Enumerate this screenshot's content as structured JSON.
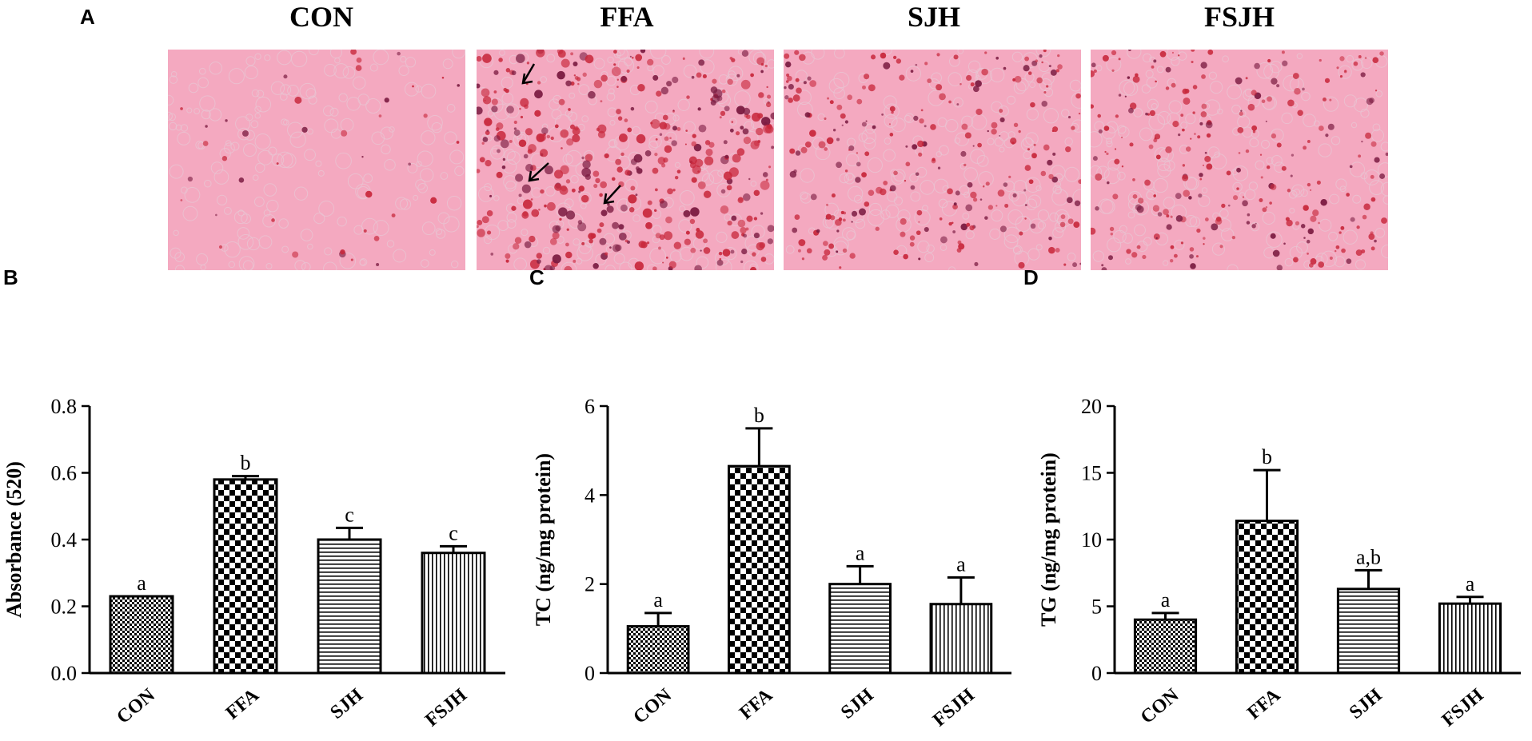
{
  "panels": {
    "a": "A",
    "b": "B",
    "c": "C",
    "d": "D"
  },
  "micrographs": [
    {
      "title": "CON",
      "stain": "light",
      "arrows": false
    },
    {
      "title": "FFA",
      "stain": "heavy",
      "arrows": true
    },
    {
      "title": "SJH",
      "stain": "medium",
      "arrows": false
    },
    {
      "title": "FSJH",
      "stain": "medium",
      "arrows": false
    }
  ],
  "colors": {
    "tissue": "#f4a9c0",
    "lipid_red": "#c8283c",
    "lipid_dark": "#7a1a40",
    "cell": "#e8c4d2"
  },
  "chart_data": [
    {
      "type": "bar",
      "panel": "B",
      "categories": [
        "CON",
        "FFA",
        "SJH",
        "FSJH"
      ],
      "values": [
        0.23,
        0.58,
        0.4,
        0.36
      ],
      "errors": [
        0.0,
        0.01,
        0.035,
        0.02
      ],
      "significance": [
        "a",
        "b",
        "c",
        "c"
      ],
      "patterns": [
        "fine-check",
        "big-check",
        "horizontal",
        "vertical"
      ],
      "ylabel": "Absorbance (520)",
      "ylim": [
        0,
        0.8
      ],
      "yticks": [
        "0.0",
        "0.2",
        "0.4",
        "0.6",
        "0.8"
      ],
      "ytick_values": [
        0,
        0.2,
        0.4,
        0.6,
        0.8
      ]
    },
    {
      "type": "bar",
      "panel": "C",
      "categories": [
        "CON",
        "FFA",
        "SJH",
        "FSJH"
      ],
      "values": [
        1.05,
        4.65,
        2.0,
        1.55
      ],
      "errors": [
        0.3,
        0.85,
        0.4,
        0.6
      ],
      "significance": [
        "a",
        "b",
        "a",
        "a"
      ],
      "patterns": [
        "fine-check",
        "big-check",
        "horizontal",
        "vertical"
      ],
      "ylabel": "TC (ng/mg protein)",
      "ylim": [
        0,
        6
      ],
      "yticks": [
        "0",
        "2",
        "4",
        "6"
      ],
      "ytick_values": [
        0,
        2,
        4,
        6
      ]
    },
    {
      "type": "bar",
      "panel": "D",
      "categories": [
        "CON",
        "FFA",
        "SJH",
        "FSJH"
      ],
      "values": [
        4.0,
        11.4,
        6.3,
        5.2
      ],
      "errors": [
        0.5,
        3.8,
        1.4,
        0.5
      ],
      "significance": [
        "a",
        "b",
        "a,b",
        "a"
      ],
      "patterns": [
        "fine-check",
        "big-check",
        "horizontal",
        "vertical"
      ],
      "ylabel": "TG (ng/mg protein)",
      "ylim": [
        0,
        20
      ],
      "yticks": [
        "0",
        "5",
        "10",
        "15",
        "20"
      ],
      "ytick_values": [
        0,
        5,
        10,
        15,
        20
      ]
    }
  ]
}
